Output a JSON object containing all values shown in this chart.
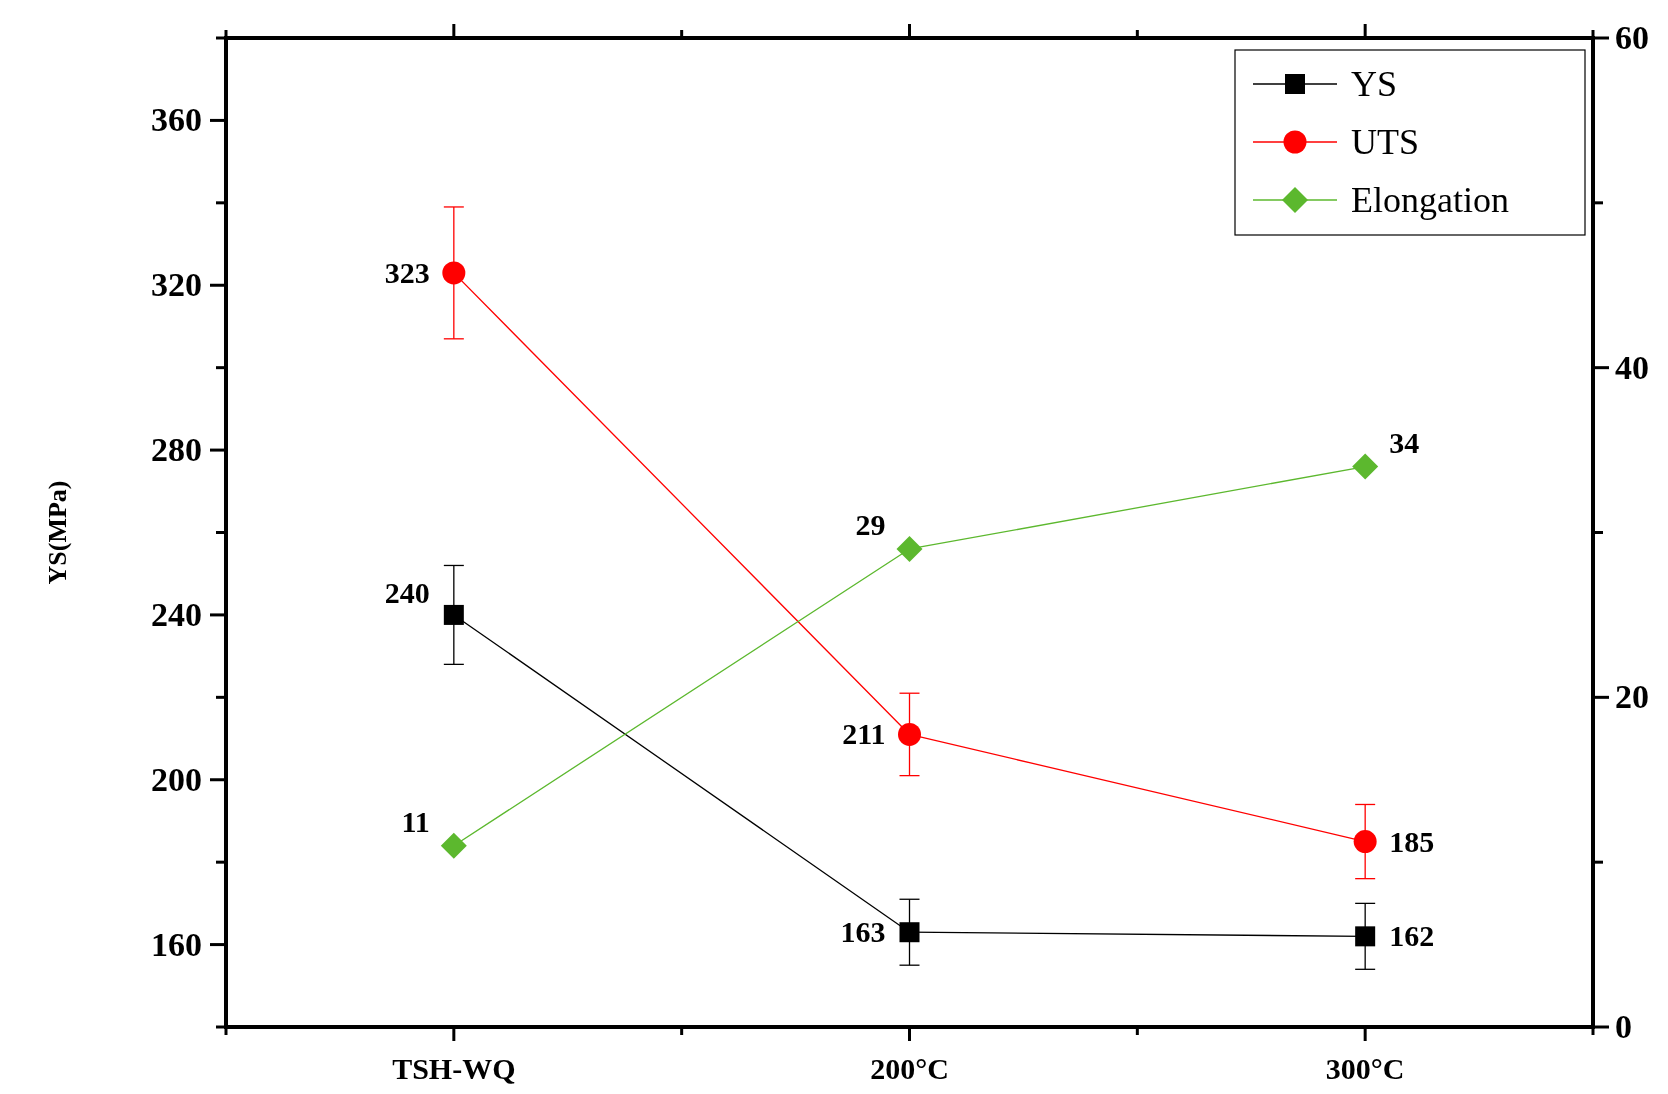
{
  "chart_data": {
    "type": "line",
    "ylabel": "YS(MPa)",
    "categories": [
      "TSH-WQ",
      "200°C",
      "300°C"
    ],
    "ylim": [
      140,
      380
    ],
    "yticks": [
      {
        "value": 140,
        "label": null
      },
      160,
      {
        "value": 180,
        "label": null
      },
      200,
      {
        "value": 220,
        "label": null
      },
      240,
      {
        "value": 260,
        "label": null
      },
      280,
      {
        "value": 300,
        "label": null
      },
      320,
      {
        "value": 340,
        "label": null
      },
      360,
      {
        "value": 380,
        "label": null
      }
    ],
    "y2lim": [
      0,
      60
    ],
    "y2ticks": [
      0,
      {
        "value": 10,
        "label": null
      },
      20,
      {
        "value": 30,
        "label": null
      },
      40,
      {
        "value": 50,
        "label": null
      },
      60
    ],
    "series": [
      {
        "name": "YS",
        "color": "#000000",
        "marker": "square",
        "values": [
          240,
          163,
          162
        ],
        "errors": [
          12,
          8,
          8
        ]
      },
      {
        "name": "UTS",
        "color": "#ff0000",
        "marker": "circle",
        "values": [
          323,
          211,
          185
        ],
        "errors": [
          16,
          10,
          [
            176,
            194
          ]
        ]
      },
      {
        "name": "Elongation",
        "color": "#5cb82e",
        "marker": "diamond",
        "axis": "y2",
        "values": [
          11,
          29,
          34
        ]
      }
    ],
    "data_labels": true,
    "legend": "top right",
    "grid": false,
    "line_style": "solid"
  }
}
